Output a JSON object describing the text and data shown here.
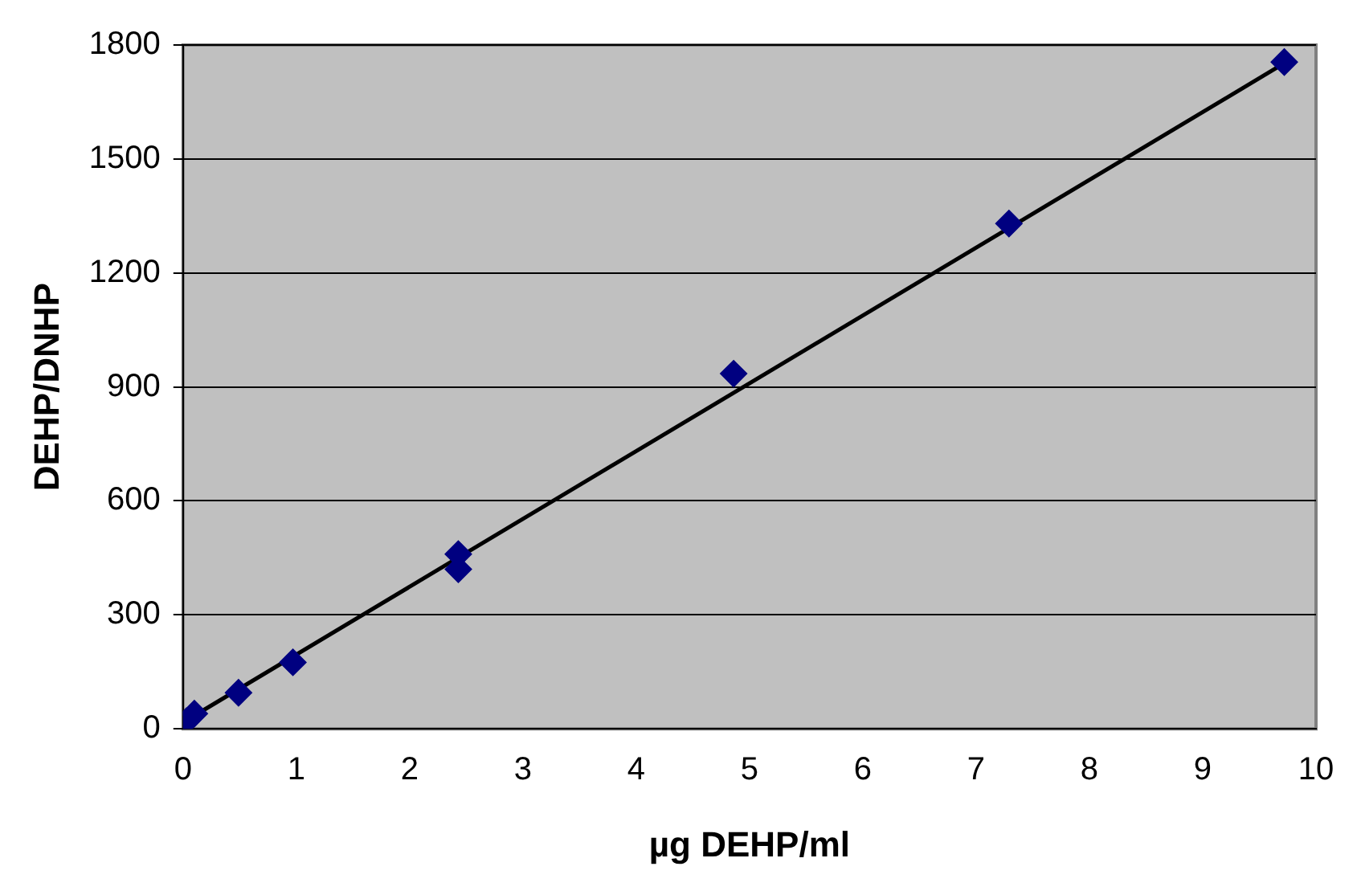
{
  "chart_data": {
    "type": "scatter",
    "xlabel": "µg DEHP/ml",
    "ylabel": "DEHP/DNHP",
    "xlim": [
      0,
      10
    ],
    "xticks": [
      0,
      1,
      2,
      3,
      4,
      5,
      6,
      7,
      8,
      9,
      10
    ],
    "ylim": [
      0,
      1800
    ],
    "yticks": [
      0,
      300,
      600,
      900,
      1200,
      1500,
      1800
    ],
    "grid": "y",
    "legend": false,
    "series": [
      {
        "color": "#000080",
        "marker": "diamond",
        "x": [
          0.03,
          0.1,
          0.49,
          0.97,
          2.43,
          2.43,
          4.86,
          7.29,
          9.72
        ],
        "values": [
          20,
          40,
          95,
          175,
          420,
          460,
          935,
          1330,
          1755
        ]
      },
      {
        "type": "line",
        "color": "#000000",
        "x": [
          0,
          9.72
        ],
        "values": [
          17,
          1752
        ]
      }
    ]
  }
}
